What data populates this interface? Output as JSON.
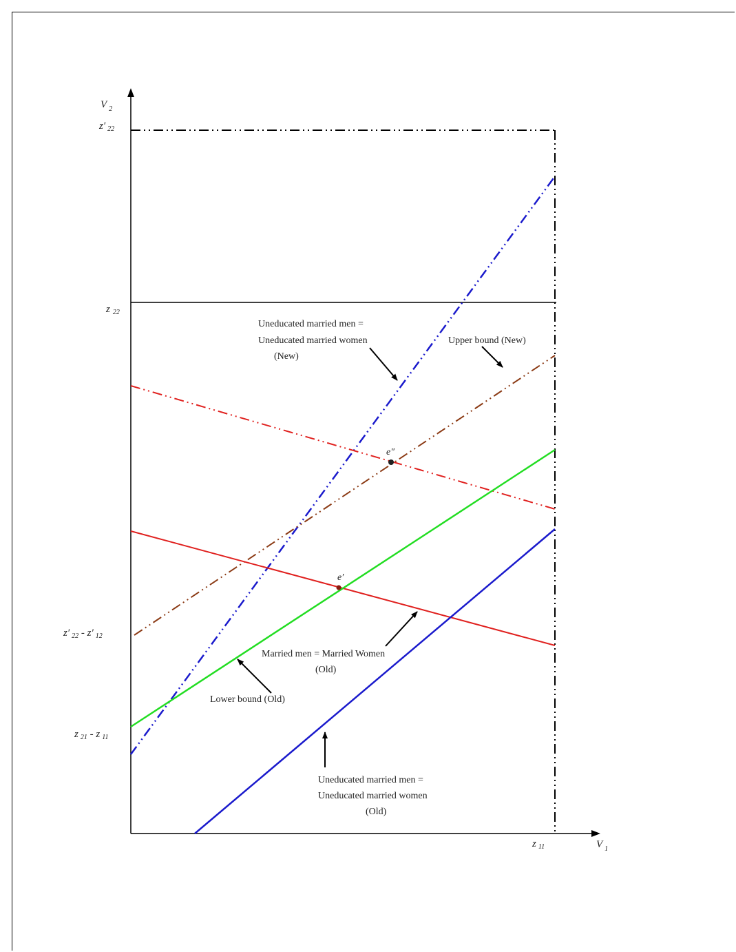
{
  "axes": {
    "y_label": "V",
    "y_label_sub": "2",
    "x_label": "V",
    "x_label_sub": "1"
  },
  "ticks": {
    "z_prime_22": {
      "main": "z′",
      "sub": "22"
    },
    "z_22": {
      "main": "z",
      "sub": "22"
    },
    "z_prime_22_minus_z_prime_12": {
      "a": "z′",
      "a_sub": "22",
      "op": " - z′",
      "b_sub": "12"
    },
    "z_21_minus_z_11": {
      "a": "z",
      "a_sub": "21",
      "op": " - z",
      "b_sub": "11"
    },
    "z_11": {
      "main": "z",
      "sub": "11"
    }
  },
  "annotations": {
    "new_uneducated": [
      "Uneducated married men =",
      "Uneducated married women",
      "(New)"
    ],
    "upper_bound_new": [
      "Upper bound (New)"
    ],
    "married_old": [
      "Married men = Married Women",
      "(Old)"
    ],
    "lower_bound_old": [
      "Lower bound (Old)"
    ],
    "old_uneducated": [
      "Uneducated married men =",
      "Uneducated married women",
      "(Old)"
    ]
  },
  "points": {
    "e_double_prime": "e″",
    "e_prime": "e′"
  },
  "colors": {
    "blue": "#1a1acc",
    "red": "#e0201e",
    "green": "#22dd22",
    "brown": "#8b3a14",
    "black": "#000000"
  }
}
